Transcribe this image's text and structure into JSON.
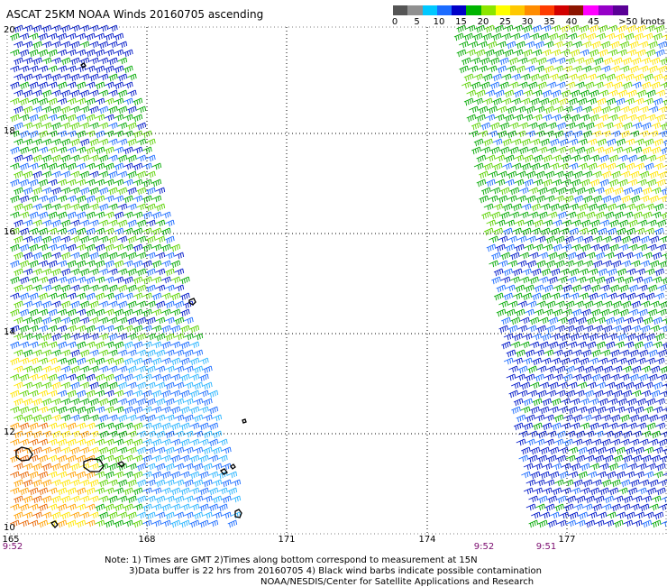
{
  "title": "ASCAT 25KM NOAA Winds 20160705 ascending",
  "legend": {
    "labels": [
      "0",
      "5",
      "10",
      "15",
      "20",
      "25",
      "30",
      "35",
      "40",
      "45",
      ">50 knots"
    ],
    "colors": [
      "#555555",
      "#909090",
      "#00c8ff",
      "#1c6cff",
      "#0000c8",
      "#00b400",
      "#8ce600",
      "#ffff00",
      "#ffc800",
      "#ff8c00",
      "#ff3c00",
      "#d20000",
      "#8c1400",
      "#ff00ff",
      "#9600c8",
      "#5a0096"
    ]
  },
  "y_axis": [
    "20",
    "18",
    "16",
    "14",
    "12",
    "10"
  ],
  "x_axis": [
    "165",
    "168",
    "171",
    "174",
    "177"
  ],
  "times": [
    "9:52",
    "9:52",
    "9:51"
  ],
  "notes": [
    "Note: 1) Times are GMT 2)Times along bottom correspond to measurement at 15N",
    "3)Data buffer is 22 hrs from 20160705 4) Black wind barbs indicate possible contamination",
    "NOAA/NESDIS/Center for Satellite Applications and Research"
  ],
  "colors": {
    "time_text": "#7a0a6e",
    "grid": "#000000"
  }
}
